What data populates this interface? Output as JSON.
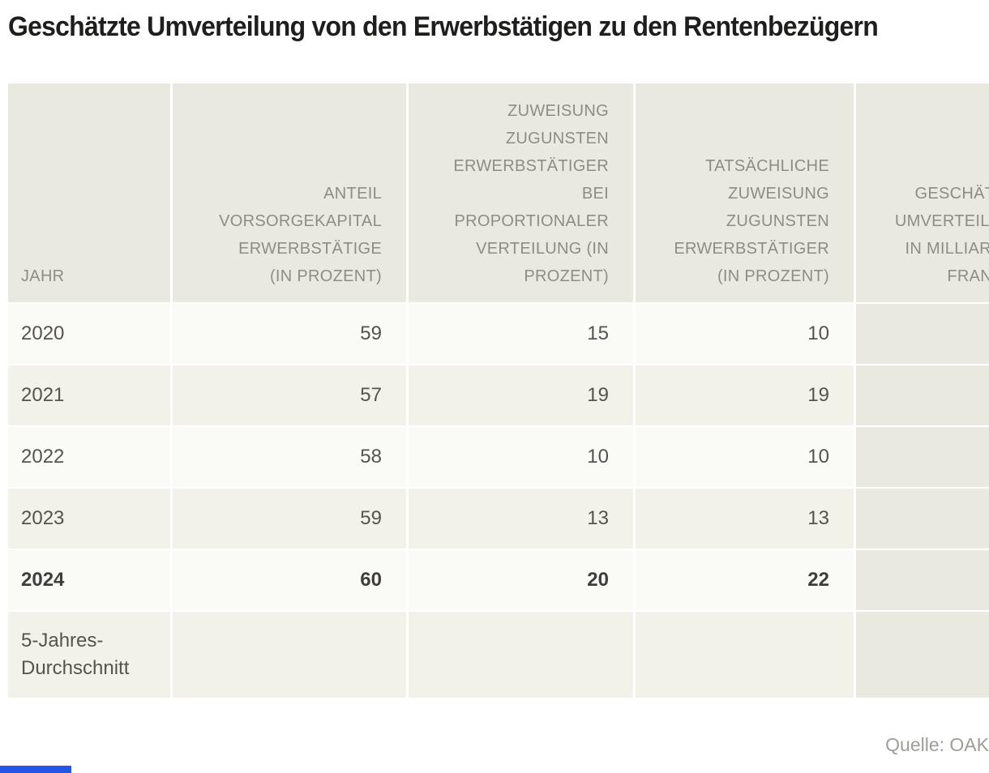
{
  "chart_data": {
    "type": "table",
    "title": "Geschätzte Umverteilung von den Erwerbstätigen zu den Rentenbezügern",
    "columns": [
      "JAHR",
      "ANTEIL VORSORGEKAPITAL ERWERBSTÄTIGE (IN PROZENT)",
      "ZUWEISUNG ZUGUNSTEN ERWERBSTÄTIGER BEI PROPORTIONALER VERTEILUNG (IN PROZENT)",
      "TATSÄCHLICHE ZUWEISUNG ZUGUNSTEN ERWERBSTÄTIGER (IN PROZENT)",
      "GESCHÄTZTE UMVERTEILUNG IN MILLIARDEN FRANKEN"
    ],
    "rows": [
      {
        "label": "2020",
        "values": [
          "59",
          "15",
          "10",
          ""
        ]
      },
      {
        "label": "2021",
        "values": [
          "57",
          "19",
          "19",
          ""
        ]
      },
      {
        "label": "2022",
        "values": [
          "58",
          "10",
          "10",
          ""
        ]
      },
      {
        "label": "2023",
        "values": [
          "59",
          "13",
          "13",
          ""
        ]
      },
      {
        "label": "2024",
        "values": [
          "60",
          "20",
          "22",
          ""
        ],
        "bold": true
      },
      {
        "label": "5-Jahres-Durchschnitt",
        "values": [
          "",
          "",
          "",
          ""
        ]
      }
    ],
    "source": "Quelle: OAK",
    "layout_hints": {
      "last_column_clipped_at_right_edge": true,
      "highlighted_column_index": 4
    }
  },
  "display": {
    "headers": {
      "c1": "JAHR",
      "c2": "ANTEIL\nVORSORGEKAPITAL\nERWERBSTÄTIGE\n(IN PROZENT)",
      "c3": "ZUWEISUNG\nZUGUNSTEN\nERWERBSTÄTIGER\nBEI\nPROPORTIONALER\nVERTEILUNG (IN\nPROZENT)",
      "c4": "TATSÄCHLICHE\nZUWEISUNG\nZUGUNSTEN\nERWERBSTÄTIGER\n(IN PROZENT)",
      "c5": "GESCHÄTZTE\nUMVERTEILUNG\nIN MILLIARDEN\nFRANKEN"
    }
  },
  "source": {
    "label": "Quelle: OAK"
  },
  "colors": {
    "header_bg": "#e9e9e2",
    "row_light_bg": "#fafaf7",
    "row_dark_bg": "#f2f2eb",
    "highlight_column_bg": "#e9e9e2",
    "header_text": "#8d8d83",
    "body_text": "#56534d",
    "bold_text": "#403e3a",
    "title_text": "#1e1e1c",
    "source_text": "#9d9d99",
    "brand_blue": "#2356e6"
  }
}
